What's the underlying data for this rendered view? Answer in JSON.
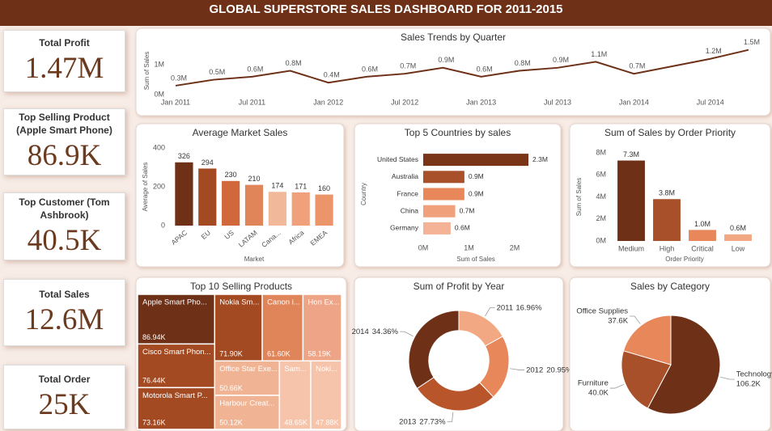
{
  "title": "GLOBAL SUPERSTORE SALES DASHBOARD FOR  2011-2015",
  "kpis": [
    {
      "label": "Total Profit",
      "value": "1.47M"
    },
    {
      "label": "Top Selling Product (Apple Smart Phone)",
      "value": "86.9K"
    },
    {
      "label": "Top Customer (Tom Ashbrook)",
      "value": "40.5K"
    },
    {
      "label": "Total Sales",
      "value": "12.6M"
    },
    {
      "label": "Total Order",
      "value": "25K"
    }
  ],
  "chart_data": [
    {
      "type": "line",
      "title": "Sales Trends by Quarter",
      "y_label": "Sum of Sales",
      "color": "#6e3118",
      "categories": [
        "Jan 2011",
        null,
        "Jul 2011",
        null,
        "Jan 2012",
        null,
        "Jul 2012",
        null,
        "Jan 2013",
        null,
        "Jul 2013",
        null,
        "Jan 2014",
        null,
        "Jul 2014",
        null
      ],
      "values": [
        300000,
        500000,
        600000,
        800000,
        400000,
        600000,
        700000,
        900000,
        600000,
        800000,
        900000,
        1100000,
        700000,
        950000,
        1200000,
        1500000
      ],
      "value_labels": [
        "0.3M",
        "0.5M",
        "0.6M",
        "0.8M",
        "0.4M",
        "0.6M",
        "0.7M",
        "0.9M",
        "0.6M",
        "0.8M",
        "0.9M",
        "1.1M",
        "0.7M",
        null,
        "1.2M",
        "1.5M"
      ],
      "ylim": [
        0,
        1600000
      ],
      "yticks": [
        {
          "value": 0,
          "label": "0M"
        },
        {
          "value": 1000000,
          "label": "1M"
        }
      ]
    },
    {
      "type": "bar",
      "title": "Average Market Sales",
      "x_label": "Market",
      "y_label": "Average of Sales",
      "categories": [
        "APAC",
        "EU",
        "US",
        "LATAM",
        "Cana...",
        "Africa",
        "EMEA"
      ],
      "values": [
        326,
        294,
        230,
        210,
        174,
        171,
        160
      ],
      "colors": [
        "#6e3118",
        "#a34a22",
        "#d0683c",
        "#e0845a",
        "#f2b89a",
        "#f0a07a",
        "#ec946a"
      ],
      "ylim": [
        0,
        400
      ],
      "yticks": [
        0,
        200,
        400
      ]
    },
    {
      "type": "bar",
      "horizontal": true,
      "title": "Top 5 Countries by sales",
      "x_label": "Sum of Sales",
      "y_label": "Country",
      "categories": [
        "United States",
        "Australia",
        "France",
        "China",
        "Germany"
      ],
      "values": [
        2300000,
        900000,
        900000,
        700000,
        600000
      ],
      "value_labels": [
        "2.3M",
        "0.9M",
        "0.9M",
        "0.7M",
        "0.6M"
      ],
      "colors": [
        "#7a3418",
        "#a8502a",
        "#e8875a",
        "#f0a07a",
        "#f4b396"
      ],
      "xlim": [
        0,
        2300000
      ],
      "xticks": [
        {
          "value": 0,
          "label": "0M"
        },
        {
          "value": 1000000,
          "label": "1M"
        },
        {
          "value": 2000000,
          "label": "2M"
        }
      ]
    },
    {
      "type": "bar",
      "title": "Sum of Sales by Order Priority",
      "x_label": "Order Priority",
      "y_label": "Sum of Sales",
      "categories": [
        "Medium",
        "High",
        "Critical",
        "Low"
      ],
      "values": [
        7300000,
        3800000,
        1000000,
        600000
      ],
      "value_labels": [
        "7.3M",
        "3.8M",
        "1.0M",
        "0.6M"
      ],
      "colors": [
        "#6e3118",
        "#a8502a",
        "#e8875a",
        "#f2a882"
      ],
      "ylim": [
        0,
        8000000
      ],
      "yticks": [
        {
          "value": 0,
          "label": "0M"
        },
        {
          "value": 2000000,
          "label": "2M"
        },
        {
          "value": 4000000,
          "label": "4M"
        },
        {
          "value": 6000000,
          "label": "6M"
        },
        {
          "value": 8000000,
          "label": "8M"
        }
      ]
    },
    {
      "type": "treemap",
      "title": "Top 10 Selling Products",
      "categories": [
        "Apple Smart Pho...",
        "Cisco Smart Phon...",
        "Motorola Smart P...",
        "Nokia Sm...",
        "Canon i...",
        "Hon Ex...",
        "Office Star Exe...",
        "Harbour Creat...",
        "Sam...",
        "Noki..."
      ],
      "values": [
        86940,
        76440,
        73160,
        71900,
        61600,
        58190,
        50660,
        50120,
        48650,
        47880
      ],
      "value_labels": [
        "86.94K",
        "76.44K",
        "73.16K",
        "71.90K",
        "61.60K",
        "58.19K",
        "50.66K",
        "50.12K",
        "48.65K",
        "47.88K"
      ],
      "colors": [
        "#6e3118",
        "#a34a22",
        "#a34a22",
        "#a34a22",
        "#e0845a",
        "#eea486",
        "#f0b494",
        "#f0b494",
        "#f5c4ab",
        "#f5c4ab"
      ]
    },
    {
      "type": "pie",
      "donut": true,
      "title": "Sum of Profit by Year",
      "categories": [
        "2011",
        "2012",
        "2013",
        "2014"
      ],
      "values": [
        16.96,
        20.95,
        27.73,
        34.36
      ],
      "value_labels": [
        "16.96%",
        "20.95%",
        "27.73%",
        "34.36%"
      ],
      "colors": [
        "#f2a882",
        "#e8875a",
        "#b8552b",
        "#6e3118"
      ]
    },
    {
      "type": "pie",
      "donut": false,
      "title": "Sales by Category",
      "categories": [
        "Technology",
        "Furniture",
        "Office Supplies"
      ],
      "values": [
        106200,
        40000,
        37600
      ],
      "value_labels": [
        "106.2K",
        "40.0K",
        "37.6K"
      ],
      "colors": [
        "#6e3118",
        "#a8502a",
        "#e8875a"
      ]
    }
  ]
}
